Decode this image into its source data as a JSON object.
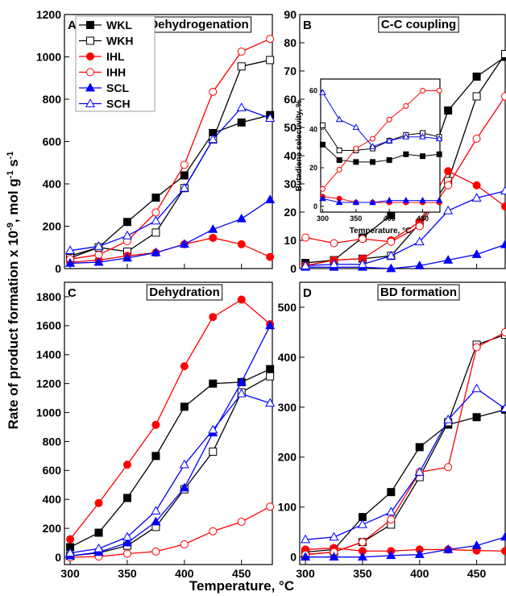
{
  "y_label": [
    "Rate of product formation x 10",
    "-9",
    ", mol g",
    "-1",
    " s",
    "-1"
  ],
  "x_label": "Temperature, °C",
  "chart_data": [
    {
      "type": "line",
      "panel_label": "A",
      "title": "Dehydrogenation",
      "legend": true,
      "legend_corner": "upper left",
      "xtick_labels": false,
      "x": [
        300,
        325,
        350,
        375,
        400,
        425,
        450,
        475
      ],
      "xlim": [
        295,
        477
      ],
      "xticks": [
        300,
        350,
        400,
        450
      ],
      "ylim": [
        0,
        1200
      ],
      "yticks": [
        0,
        200,
        400,
        600,
        800,
        1000,
        1200
      ],
      "series": [
        {
          "name": "WKL",
          "color": "#000000",
          "marker": "square",
          "filled": true,
          "values": [
            60,
            100,
            220,
            335,
            440,
            640,
            690,
            725
          ]
        },
        {
          "name": "WKH",
          "color": "#000000",
          "marker": "square",
          "filled": false,
          "values": [
            50,
            100,
            80,
            170,
            380,
            610,
            955,
            985
          ]
        },
        {
          "name": "IHL",
          "color": "#ff0000",
          "marker": "circle",
          "filled": true,
          "values": [
            30,
            40,
            60,
            75,
            115,
            145,
            115,
            55
          ]
        },
        {
          "name": "IHH",
          "color": "#ff0000",
          "marker": "circle",
          "filled": false,
          "values": [
            45,
            65,
            130,
            265,
            490,
            835,
            1025,
            1085
          ]
        },
        {
          "name": "SCL",
          "color": "#0000ff",
          "marker": "triangle",
          "filled": true,
          "values": [
            25,
            30,
            50,
            75,
            115,
            185,
            235,
            325
          ]
        },
        {
          "name": "SCH",
          "color": "#0000ff",
          "marker": "triangle",
          "filled": false,
          "values": [
            85,
            105,
            155,
            225,
            380,
            610,
            760,
            710
          ]
        }
      ]
    },
    {
      "type": "line",
      "panel_label": "B",
      "title": "C-C coupling",
      "xtick_labels": false,
      "x": [
        300,
        325,
        350,
        375,
        400,
        425,
        450,
        475
      ],
      "xlim": [
        295,
        475
      ],
      "xticks": [
        300,
        350,
        400,
        450
      ],
      "ylim": [
        0,
        90
      ],
      "yticks": [
        0,
        10,
        20,
        30,
        40,
        50,
        60,
        70,
        80,
        90
      ],
      "series": [
        {
          "color": "#000000",
          "marker": "square",
          "filled": true,
          "values": [
            2,
            3,
            11,
            19,
            27,
            56,
            68,
            75
          ]
        },
        {
          "color": "#000000",
          "marker": "square",
          "filled": false,
          "values": [
            1,
            3,
            3.5,
            4.5,
            16,
            31,
            61,
            76
          ]
        },
        {
          "color": "#ff0000",
          "marker": "circle",
          "filled": true,
          "values": [
            1,
            3,
            3.5,
            10,
            16.5,
            34.5,
            29.5,
            22
          ]
        },
        {
          "color": "#ff0000",
          "marker": "circle",
          "filled": false,
          "values": [
            11,
            9,
            10.5,
            9.5,
            15,
            29.5,
            46,
            61
          ]
        },
        {
          "color": "#0000ff",
          "marker": "triangle",
          "filled": true,
          "values": [
            0.5,
            0.5,
            0.5,
            0,
            1,
            3,
            5,
            8.5
          ]
        },
        {
          "color": "#0000ff",
          "marker": "triangle",
          "filled": false,
          "values": [
            1,
            1.5,
            1.5,
            4.5,
            9.5,
            20.5,
            25,
            27.5
          ]
        }
      ]
    },
    {
      "type": "line",
      "panel_label": "C",
      "title": "Dehydration",
      "xtick_labels": true,
      "x": [
        300,
        325,
        350,
        375,
        400,
        425,
        450,
        475
      ],
      "xlim": [
        295,
        477
      ],
      "xticks": [
        300,
        350,
        400,
        450
      ],
      "ylim": [
        -50,
        1900
      ],
      "yticks": [
        0,
        200,
        400,
        600,
        800,
        1000,
        1200,
        1400,
        1600,
        1800
      ],
      "series": [
        {
          "color": "#000000",
          "marker": "square",
          "filled": true,
          "values": [
            70,
            170,
            410,
            700,
            1040,
            1200,
            1210,
            1300
          ]
        },
        {
          "color": "#000000",
          "marker": "square",
          "filled": false,
          "values": [
            10,
            30,
            80,
            210,
            470,
            730,
            1140,
            1250
          ]
        },
        {
          "color": "#ff0000",
          "marker": "circle",
          "filled": true,
          "values": [
            125,
            375,
            640,
            915,
            1320,
            1660,
            1780,
            1610
          ]
        },
        {
          "color": "#ff0000",
          "marker": "circle",
          "filled": false,
          "values": [
            0,
            5,
            25,
            40,
            90,
            180,
            245,
            350
          ]
        },
        {
          "color": "#0000ff",
          "marker": "triangle",
          "filled": true,
          "values": [
            10,
            35,
            100,
            245,
            480,
            860,
            1210,
            1600
          ]
        },
        {
          "color": "#0000ff",
          "marker": "triangle",
          "filled": false,
          "values": [
            30,
            60,
            140,
            320,
            640,
            880,
            1130,
            1065
          ]
        }
      ]
    },
    {
      "type": "line",
      "panel_label": "D",
      "title": "BD formation",
      "xtick_labels": true,
      "x": [
        300,
        325,
        350,
        375,
        400,
        425,
        450,
        475
      ],
      "xlim": [
        295,
        475
      ],
      "xticks": [
        300,
        350,
        400,
        450
      ],
      "ylim": [
        -15,
        550
      ],
      "yticks": [
        0,
        100,
        200,
        300,
        400,
        500
      ],
      "series": [
        {
          "color": "#000000",
          "marker": "square",
          "filled": true,
          "values": [
            10,
            15,
            80,
            130,
            220,
            265,
            280,
            295
          ]
        },
        {
          "color": "#000000",
          "marker": "square",
          "filled": false,
          "values": [
            5,
            10,
            30,
            65,
            160,
            270,
            425,
            445
          ]
        },
        {
          "color": "#ff0000",
          "marker": "circle",
          "filled": true,
          "values": [
            15,
            18,
            12,
            12,
            15,
            15,
            13,
            12
          ]
        },
        {
          "color": "#ff0000",
          "marker": "circle",
          "filled": false,
          "values": [
            5,
            10,
            30,
            75,
            170,
            180,
            420,
            450
          ]
        },
        {
          "color": "#0000ff",
          "marker": "triangle",
          "filled": true,
          "values": [
            0,
            0,
            0,
            3,
            5,
            15,
            23,
            40
          ]
        },
        {
          "color": "#0000ff",
          "marker": "triangle",
          "filled": false,
          "values": [
            35,
            40,
            65,
            90,
            170,
            275,
            337,
            297
          ]
        }
      ]
    },
    {
      "type": "line",
      "xlabel": "Temperature, °C",
      "ylabel": "Butadiene selectivity, %",
      "xtick_labels": true,
      "small": true,
      "x": [
        300,
        325,
        350,
        375,
        400,
        425,
        450,
        475
      ],
      "xlim": [
        297,
        476
      ],
      "xticks": [
        300,
        350,
        400,
        450
      ],
      "ylim": [
        -3,
        66
      ],
      "yticks": [
        0,
        20,
        40,
        60
      ],
      "series": [
        {
          "color": "#000000",
          "marker": "square",
          "filled": true,
          "values": [
            32,
            24,
            23,
            23,
            24,
            27,
            26,
            27
          ]
        },
        {
          "color": "#000000",
          "marker": "square",
          "filled": false,
          "values": [
            42,
            29,
            29,
            30,
            34,
            37,
            38,
            36
          ]
        },
        {
          "color": "#ff0000",
          "marker": "circle",
          "filled": true,
          "values": [
            5,
            4,
            2,
            2,
            2,
            2,
            2,
            2
          ]
        },
        {
          "color": "#ff0000",
          "marker": "circle",
          "filled": false,
          "values": [
            9,
            19,
            30,
            35,
            45,
            52,
            60,
            60
          ]
        },
        {
          "color": "#0000ff",
          "marker": "triangle",
          "filled": true,
          "values": [
            4,
            2,
            2,
            2,
            3,
            3,
            3,
            3
          ]
        },
        {
          "color": "#0000ff",
          "marker": "triangle",
          "filled": false,
          "values": [
            59,
            45,
            41,
            31,
            34,
            36,
            36,
            35
          ]
        }
      ]
    }
  ]
}
